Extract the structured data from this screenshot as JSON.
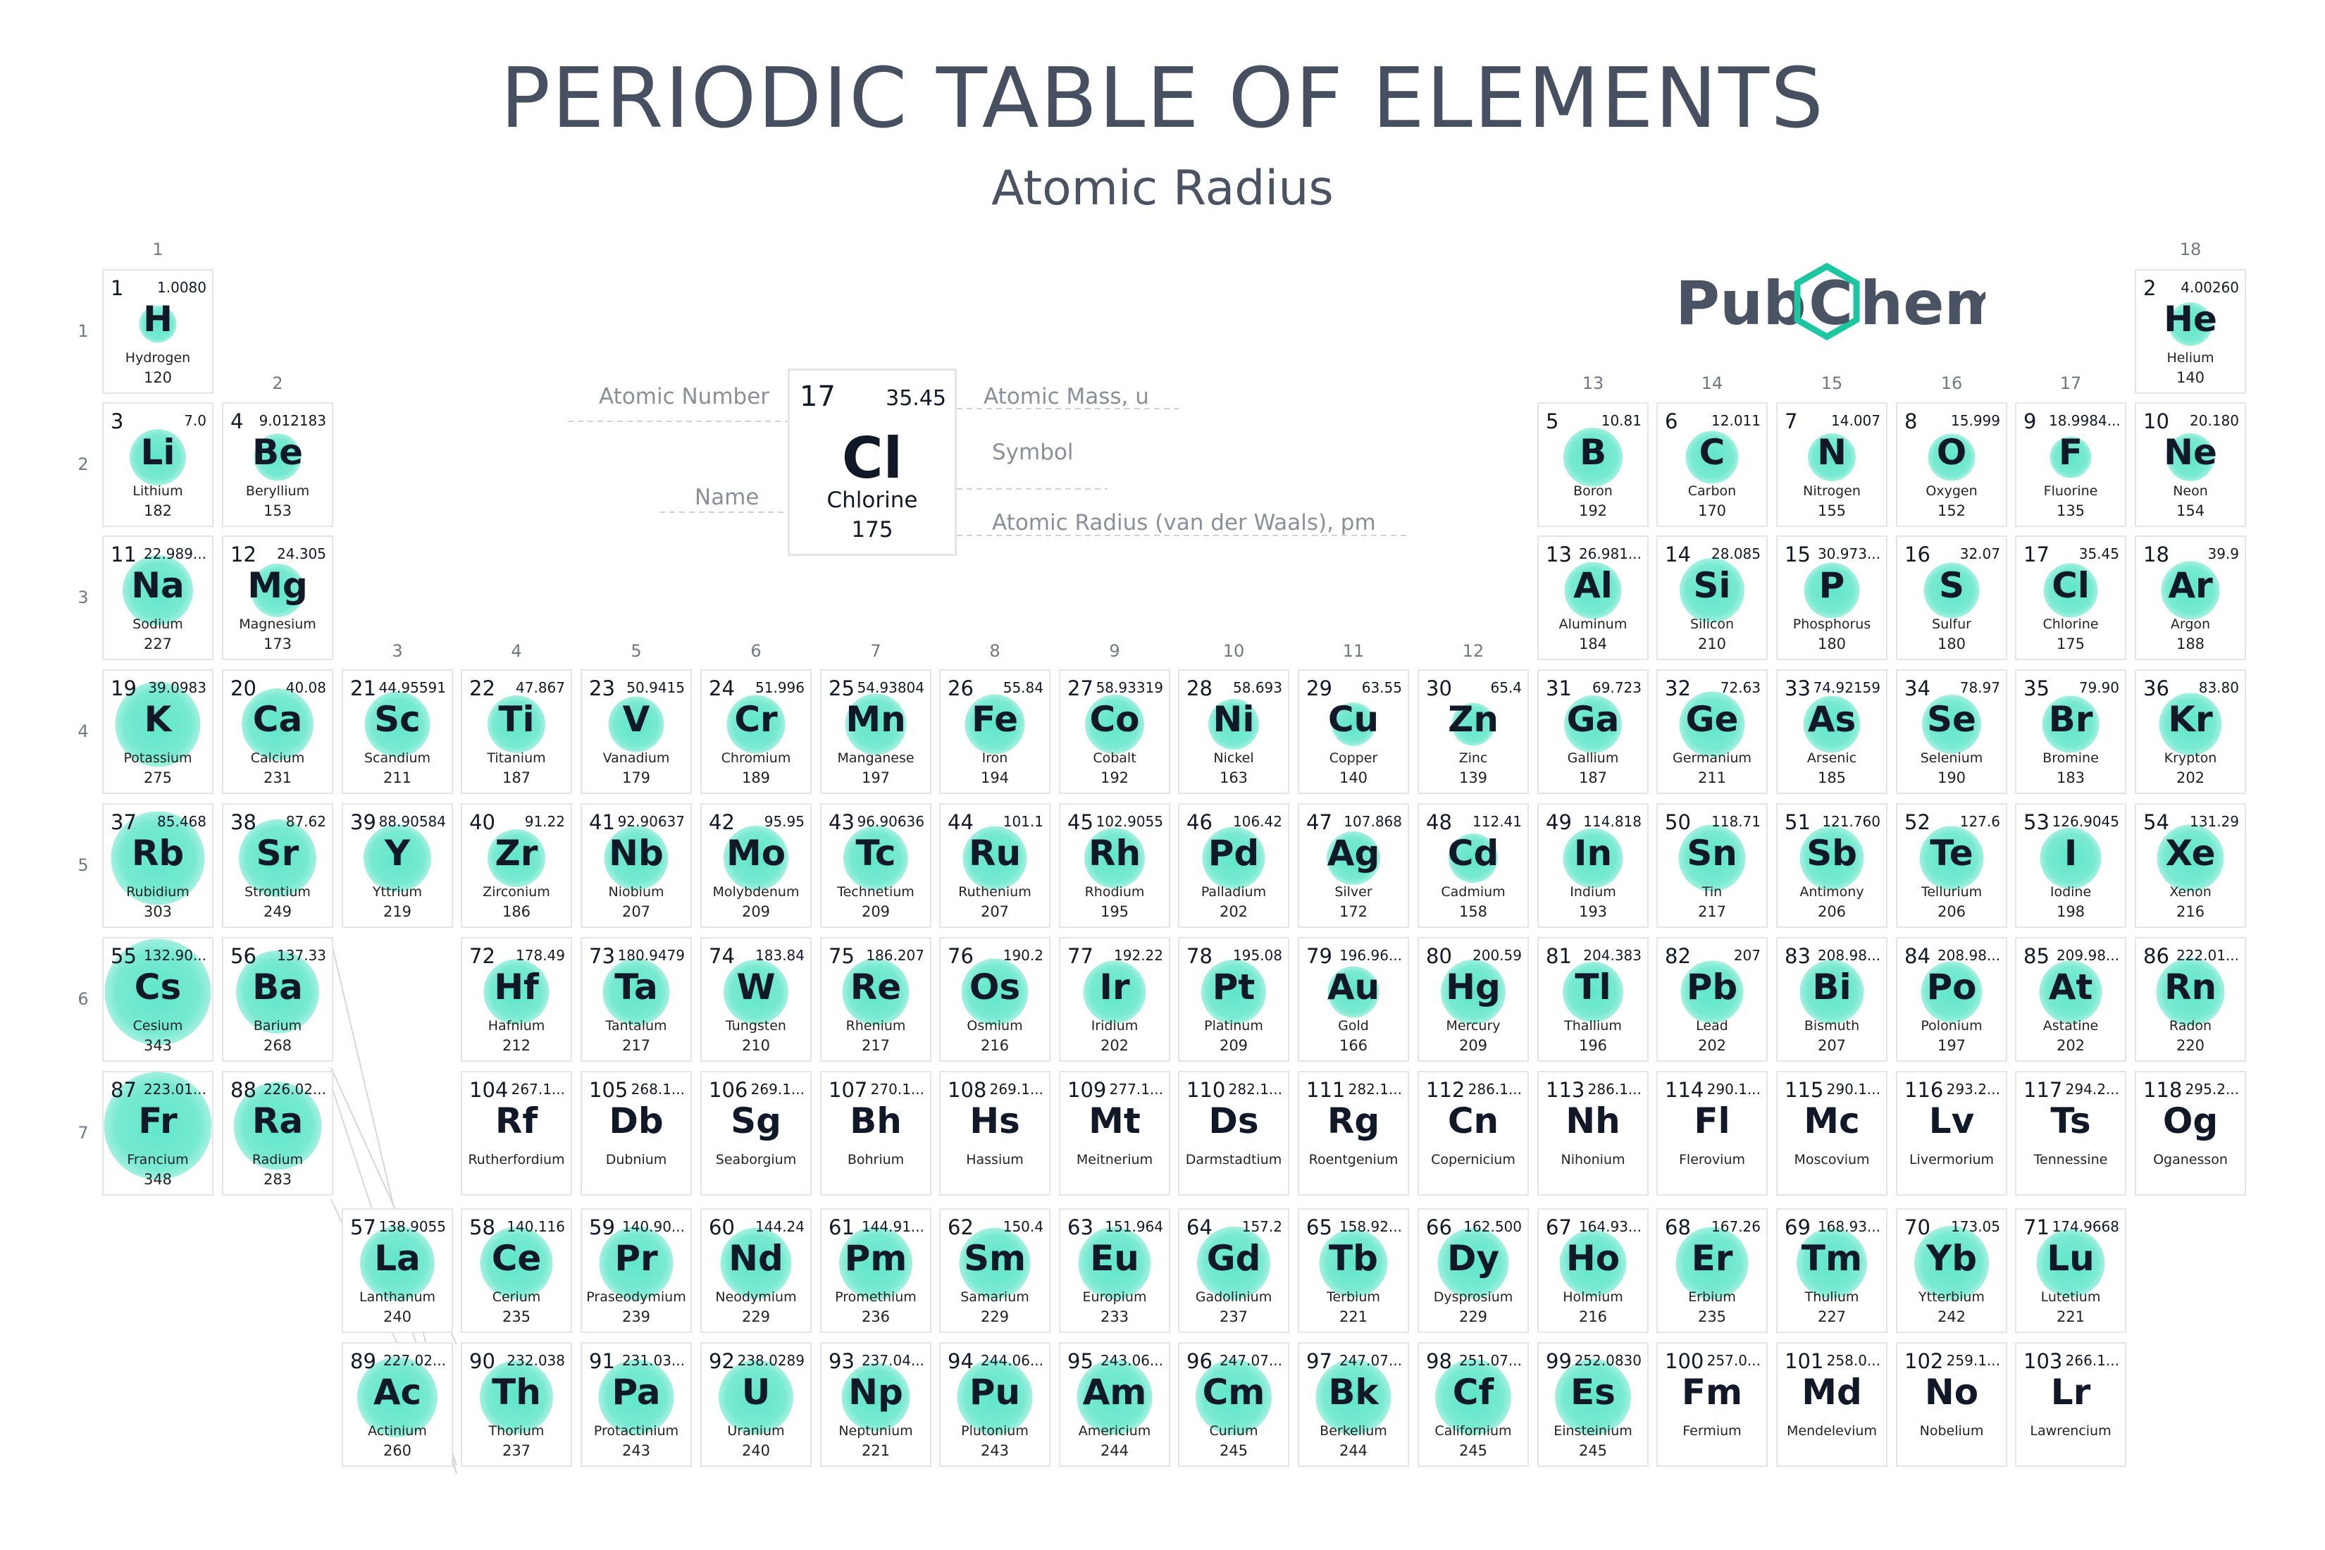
{
  "title": "PERIODIC TABLE OF ELEMENTS",
  "subtitle": "Atomic Radius",
  "logo": {
    "left": "Pub",
    "mid": "C",
    "right": "hem"
  },
  "colors": {
    "circle": "#52e4c4",
    "title": "#465061",
    "logo_hex": "#1cc6a0",
    "border": "#e3e5e8"
  },
  "groups": [
    "1",
    "2",
    "3",
    "4",
    "5",
    "6",
    "7",
    "8",
    "9",
    "10",
    "11",
    "12",
    "13",
    "14",
    "15",
    "16",
    "17",
    "18"
  ],
  "periods": [
    "1",
    "2",
    "3",
    "4",
    "5",
    "6",
    "7"
  ],
  "key": {
    "number": "17",
    "mass": "35.45",
    "symbol": "Cl",
    "name": "Chlorine",
    "radius": "175",
    "number_label": "Atomic Number",
    "mass_label": "Atomic Mass, u",
    "symbol_label": "Symbol",
    "name_label": "Name",
    "radius_label": "Atomic Radius (van der Waals), pm"
  },
  "elements": [
    {
      "n": "1",
      "m": "1.0080",
      "s": "H",
      "name": "Hydrogen",
      "r": "120"
    },
    {
      "n": "2",
      "m": "4.00260",
      "s": "He",
      "name": "Helium",
      "r": "140"
    },
    {
      "n": "3",
      "m": "7.0",
      "s": "Li",
      "name": "Lithium",
      "r": "182"
    },
    {
      "n": "4",
      "m": "9.012183",
      "s": "Be",
      "name": "Beryllium",
      "r": "153"
    },
    {
      "n": "5",
      "m": "10.81",
      "s": "B",
      "name": "Boron",
      "r": "192"
    },
    {
      "n": "6",
      "m": "12.011",
      "s": "C",
      "name": "Carbon",
      "r": "170"
    },
    {
      "n": "7",
      "m": "14.007",
      "s": "N",
      "name": "Nitrogen",
      "r": "155"
    },
    {
      "n": "8",
      "m": "15.999",
      "s": "O",
      "name": "Oxygen",
      "r": "152"
    },
    {
      "n": "9",
      "m": "18.9984...",
      "s": "F",
      "name": "Fluorine",
      "r": "135"
    },
    {
      "n": "10",
      "m": "20.180",
      "s": "Ne",
      "name": "Neon",
      "r": "154"
    },
    {
      "n": "11",
      "m": "22.989...",
      "s": "Na",
      "name": "Sodium",
      "r": "227"
    },
    {
      "n": "12",
      "m": "24.305",
      "s": "Mg",
      "name": "Magnesium",
      "r": "173"
    },
    {
      "n": "13",
      "m": "26.981...",
      "s": "Al",
      "name": "Aluminum",
      "r": "184"
    },
    {
      "n": "14",
      "m": "28.085",
      "s": "Si",
      "name": "Silicon",
      "r": "210"
    },
    {
      "n": "15",
      "m": "30.973...",
      "s": "P",
      "name": "Phosphorus",
      "r": "180"
    },
    {
      "n": "16",
      "m": "32.07",
      "s": "S",
      "name": "Sulfur",
      "r": "180"
    },
    {
      "n": "17",
      "m": "35.45",
      "s": "Cl",
      "name": "Chlorine",
      "r": "175"
    },
    {
      "n": "18",
      "m": "39.9",
      "s": "Ar",
      "name": "Argon",
      "r": "188"
    },
    {
      "n": "19",
      "m": "39.0983",
      "s": "K",
      "name": "Potassium",
      "r": "275"
    },
    {
      "n": "20",
      "m": "40.08",
      "s": "Ca",
      "name": "Calcium",
      "r": "231"
    },
    {
      "n": "21",
      "m": "44.95591",
      "s": "Sc",
      "name": "Scandium",
      "r": "211"
    },
    {
      "n": "22",
      "m": "47.867",
      "s": "Ti",
      "name": "Titanium",
      "r": "187"
    },
    {
      "n": "23",
      "m": "50.9415",
      "s": "V",
      "name": "Vanadium",
      "r": "179"
    },
    {
      "n": "24",
      "m": "51.996",
      "s": "Cr",
      "name": "Chromium",
      "r": "189"
    },
    {
      "n": "25",
      "m": "54.93804",
      "s": "Mn",
      "name": "Manganese",
      "r": "197"
    },
    {
      "n": "26",
      "m": "55.84",
      "s": "Fe",
      "name": "Iron",
      "r": "194"
    },
    {
      "n": "27",
      "m": "58.93319",
      "s": "Co",
      "name": "Cobalt",
      "r": "192"
    },
    {
      "n": "28",
      "m": "58.693",
      "s": "Ni",
      "name": "Nickel",
      "r": "163"
    },
    {
      "n": "29",
      "m": "63.55",
      "s": "Cu",
      "name": "Copper",
      "r": "140"
    },
    {
      "n": "30",
      "m": "65.4",
      "s": "Zn",
      "name": "Zinc",
      "r": "139"
    },
    {
      "n": "31",
      "m": "69.723",
      "s": "Ga",
      "name": "Gallium",
      "r": "187"
    },
    {
      "n": "32",
      "m": "72.63",
      "s": "Ge",
      "name": "Germanium",
      "r": "211"
    },
    {
      "n": "33",
      "m": "74.92159",
      "s": "As",
      "name": "Arsenic",
      "r": "185"
    },
    {
      "n": "34",
      "m": "78.97",
      "s": "Se",
      "name": "Selenium",
      "r": "190"
    },
    {
      "n": "35",
      "m": "79.90",
      "s": "Br",
      "name": "Bromine",
      "r": "183"
    },
    {
      "n": "36",
      "m": "83.80",
      "s": "Kr",
      "name": "Krypton",
      "r": "202"
    },
    {
      "n": "37",
      "m": "85.468",
      "s": "Rb",
      "name": "Rubidium",
      "r": "303"
    },
    {
      "n": "38",
      "m": "87.62",
      "s": "Sr",
      "name": "Strontium",
      "r": "249"
    },
    {
      "n": "39",
      "m": "88.90584",
      "s": "Y",
      "name": "Yttrium",
      "r": "219"
    },
    {
      "n": "40",
      "m": "91.22",
      "s": "Zr",
      "name": "Zirconium",
      "r": "186"
    },
    {
      "n": "41",
      "m": "92.90637",
      "s": "Nb",
      "name": "Niobium",
      "r": "207"
    },
    {
      "n": "42",
      "m": "95.95",
      "s": "Mo",
      "name": "Molybdenum",
      "r": "209"
    },
    {
      "n": "43",
      "m": "96.90636",
      "s": "Tc",
      "name": "Technetium",
      "r": "209"
    },
    {
      "n": "44",
      "m": "101.1",
      "s": "Ru",
      "name": "Ruthenium",
      "r": "207"
    },
    {
      "n": "45",
      "m": "102.9055",
      "s": "Rh",
      "name": "Rhodium",
      "r": "195"
    },
    {
      "n": "46",
      "m": "106.42",
      "s": "Pd",
      "name": "Palladium",
      "r": "202"
    },
    {
      "n": "47",
      "m": "107.868",
      "s": "Ag",
      "name": "Silver",
      "r": "172"
    },
    {
      "n": "48",
      "m": "112.41",
      "s": "Cd",
      "name": "Cadmium",
      "r": "158"
    },
    {
      "n": "49",
      "m": "114.818",
      "s": "In",
      "name": "Indium",
      "r": "193"
    },
    {
      "n": "50",
      "m": "118.71",
      "s": "Sn",
      "name": "Tin",
      "r": "217"
    },
    {
      "n": "51",
      "m": "121.760",
      "s": "Sb",
      "name": "Antimony",
      "r": "206"
    },
    {
      "n": "52",
      "m": "127.6",
      "s": "Te",
      "name": "Tellurium",
      "r": "206"
    },
    {
      "n": "53",
      "m": "126.9045",
      "s": "I",
      "name": "Iodine",
      "r": "198"
    },
    {
      "n": "54",
      "m": "131.29",
      "s": "Xe",
      "name": "Xenon",
      "r": "216"
    },
    {
      "n": "55",
      "m": "132.90...",
      "s": "Cs",
      "name": "Cesium",
      "r": "343"
    },
    {
      "n": "56",
      "m": "137.33",
      "s": "Ba",
      "name": "Barium",
      "r": "268"
    },
    {
      "n": "72",
      "m": "178.49",
      "s": "Hf",
      "name": "Hafnium",
      "r": "212"
    },
    {
      "n": "73",
      "m": "180.9479",
      "s": "Ta",
      "name": "Tantalum",
      "r": "217"
    },
    {
      "n": "74",
      "m": "183.84",
      "s": "W",
      "name": "Tungsten",
      "r": "210"
    },
    {
      "n": "75",
      "m": "186.207",
      "s": "Re",
      "name": "Rhenium",
      "r": "217"
    },
    {
      "n": "76",
      "m": "190.2",
      "s": "Os",
      "name": "Osmium",
      "r": "216"
    },
    {
      "n": "77",
      "m": "192.22",
      "s": "Ir",
      "name": "Iridium",
      "r": "202"
    },
    {
      "n": "78",
      "m": "195.08",
      "s": "Pt",
      "name": "Platinum",
      "r": "209"
    },
    {
      "n": "79",
      "m": "196.96...",
      "s": "Au",
      "name": "Gold",
      "r": "166"
    },
    {
      "n": "80",
      "m": "200.59",
      "s": "Hg",
      "name": "Mercury",
      "r": "209"
    },
    {
      "n": "81",
      "m": "204.383",
      "s": "Tl",
      "name": "Thallium",
      "r": "196"
    },
    {
      "n": "82",
      "m": "207",
      "s": "Pb",
      "name": "Lead",
      "r": "202"
    },
    {
      "n": "83",
      "m": "208.98...",
      "s": "Bi",
      "name": "Bismuth",
      "r": "207"
    },
    {
      "n": "84",
      "m": "208.98...",
      "s": "Po",
      "name": "Polonium",
      "r": "197"
    },
    {
      "n": "85",
      "m": "209.98...",
      "s": "At",
      "name": "Astatine",
      "r": "202"
    },
    {
      "n": "86",
      "m": "222.01...",
      "s": "Rn",
      "name": "Radon",
      "r": "220"
    },
    {
      "n": "87",
      "m": "223.01...",
      "s": "Fr",
      "name": "Francium",
      "r": "348"
    },
    {
      "n": "88",
      "m": "226.02...",
      "s": "Ra",
      "name": "Radium",
      "r": "283"
    },
    {
      "n": "104",
      "m": "267.1...",
      "s": "Rf",
      "name": "Rutherfordium",
      "r": ""
    },
    {
      "n": "105",
      "m": "268.1...",
      "s": "Db",
      "name": "Dubnium",
      "r": ""
    },
    {
      "n": "106",
      "m": "269.1...",
      "s": "Sg",
      "name": "Seaborgium",
      "r": ""
    },
    {
      "n": "107",
      "m": "270.1...",
      "s": "Bh",
      "name": "Bohrium",
      "r": ""
    },
    {
      "n": "108",
      "m": "269.1...",
      "s": "Hs",
      "name": "Hassium",
      "r": ""
    },
    {
      "n": "109",
      "m": "277.1...",
      "s": "Mt",
      "name": "Meitnerium",
      "r": ""
    },
    {
      "n": "110",
      "m": "282.1...",
      "s": "Ds",
      "name": "Darmstadtium",
      "r": ""
    },
    {
      "n": "111",
      "m": "282.1...",
      "s": "Rg",
      "name": "Roentgenium",
      "r": ""
    },
    {
      "n": "112",
      "m": "286.1...",
      "s": "Cn",
      "name": "Copernicium",
      "r": ""
    },
    {
      "n": "113",
      "m": "286.1...",
      "s": "Nh",
      "name": "Nihonium",
      "r": ""
    },
    {
      "n": "114",
      "m": "290.1...",
      "s": "Fl",
      "name": "Flerovium",
      "r": ""
    },
    {
      "n": "115",
      "m": "290.1...",
      "s": "Mc",
      "name": "Moscovium",
      "r": ""
    },
    {
      "n": "116",
      "m": "293.2...",
      "s": "Lv",
      "name": "Livermorium",
      "r": ""
    },
    {
      "n": "117",
      "m": "294.2...",
      "s": "Ts",
      "name": "Tennessine",
      "r": ""
    },
    {
      "n": "118",
      "m": "295.2...",
      "s": "Og",
      "name": "Oganesson",
      "r": ""
    },
    {
      "n": "57",
      "m": "138.9055",
      "s": "La",
      "name": "Lanthanum",
      "r": "240"
    },
    {
      "n": "58",
      "m": "140.116",
      "s": "Ce",
      "name": "Cerium",
      "r": "235"
    },
    {
      "n": "59",
      "m": "140.90...",
      "s": "Pr",
      "name": "Praseodymium",
      "r": "239"
    },
    {
      "n": "60",
      "m": "144.24",
      "s": "Nd",
      "name": "Neodymium",
      "r": "229"
    },
    {
      "n": "61",
      "m": "144.91...",
      "s": "Pm",
      "name": "Promethium",
      "r": "236"
    },
    {
      "n": "62",
      "m": "150.4",
      "s": "Sm",
      "name": "Samarium",
      "r": "229"
    },
    {
      "n": "63",
      "m": "151.964",
      "s": "Eu",
      "name": "Europium",
      "r": "233"
    },
    {
      "n": "64",
      "m": "157.2",
      "s": "Gd",
      "name": "Gadolinium",
      "r": "237"
    },
    {
      "n": "65",
      "m": "158.92...",
      "s": "Tb",
      "name": "Terbium",
      "r": "221"
    },
    {
      "n": "66",
      "m": "162.500",
      "s": "Dy",
      "name": "Dysprosium",
      "r": "229"
    },
    {
      "n": "67",
      "m": "164.93...",
      "s": "Ho",
      "name": "Holmium",
      "r": "216"
    },
    {
      "n": "68",
      "m": "167.26",
      "s": "Er",
      "name": "Erbium",
      "r": "235"
    },
    {
      "n": "69",
      "m": "168.93...",
      "s": "Tm",
      "name": "Thulium",
      "r": "227"
    },
    {
      "n": "70",
      "m": "173.05",
      "s": "Yb",
      "name": "Ytterbium",
      "r": "242"
    },
    {
      "n": "71",
      "m": "174.9668",
      "s": "Lu",
      "name": "Lutetium",
      "r": "221"
    },
    {
      "n": "89",
      "m": "227.02...",
      "s": "Ac",
      "name": "Actinium",
      "r": "260"
    },
    {
      "n": "90",
      "m": "232.038",
      "s": "Th",
      "name": "Thorium",
      "r": "237"
    },
    {
      "n": "91",
      "m": "231.03...",
      "s": "Pa",
      "name": "Protactinium",
      "r": "243"
    },
    {
      "n": "92",
      "m": "238.0289",
      "s": "U",
      "name": "Uranium",
      "r": "240"
    },
    {
      "n": "93",
      "m": "237.04...",
      "s": "Np",
      "name": "Neptunium",
      "r": "221"
    },
    {
      "n": "94",
      "m": "244.06...",
      "s": "Pu",
      "name": "Plutonium",
      "r": "243"
    },
    {
      "n": "95",
      "m": "243.06...",
      "s": "Am",
      "name": "Americium",
      "r": "244"
    },
    {
      "n": "96",
      "m": "247.07...",
      "s": "Cm",
      "name": "Curium",
      "r": "245"
    },
    {
      "n": "97",
      "m": "247.07...",
      "s": "Bk",
      "name": "Berkelium",
      "r": "244"
    },
    {
      "n": "98",
      "m": "251.07...",
      "s": "Cf",
      "name": "Californium",
      "r": "245"
    },
    {
      "n": "99",
      "m": "252.0830",
      "s": "Es",
      "name": "Einsteinium",
      "r": "245"
    },
    {
      "n": "100",
      "m": "257.0...",
      "s": "Fm",
      "name": "Fermium",
      "r": ""
    },
    {
      "n": "101",
      "m": "258.0...",
      "s": "Md",
      "name": "Mendelevium",
      "r": ""
    },
    {
      "n": "102",
      "m": "259.1...",
      "s": "No",
      "name": "Nobelium",
      "r": ""
    },
    {
      "n": "103",
      "m": "266.1...",
      "s": "Lr",
      "name": "Lawrencium",
      "r": ""
    }
  ]
}
